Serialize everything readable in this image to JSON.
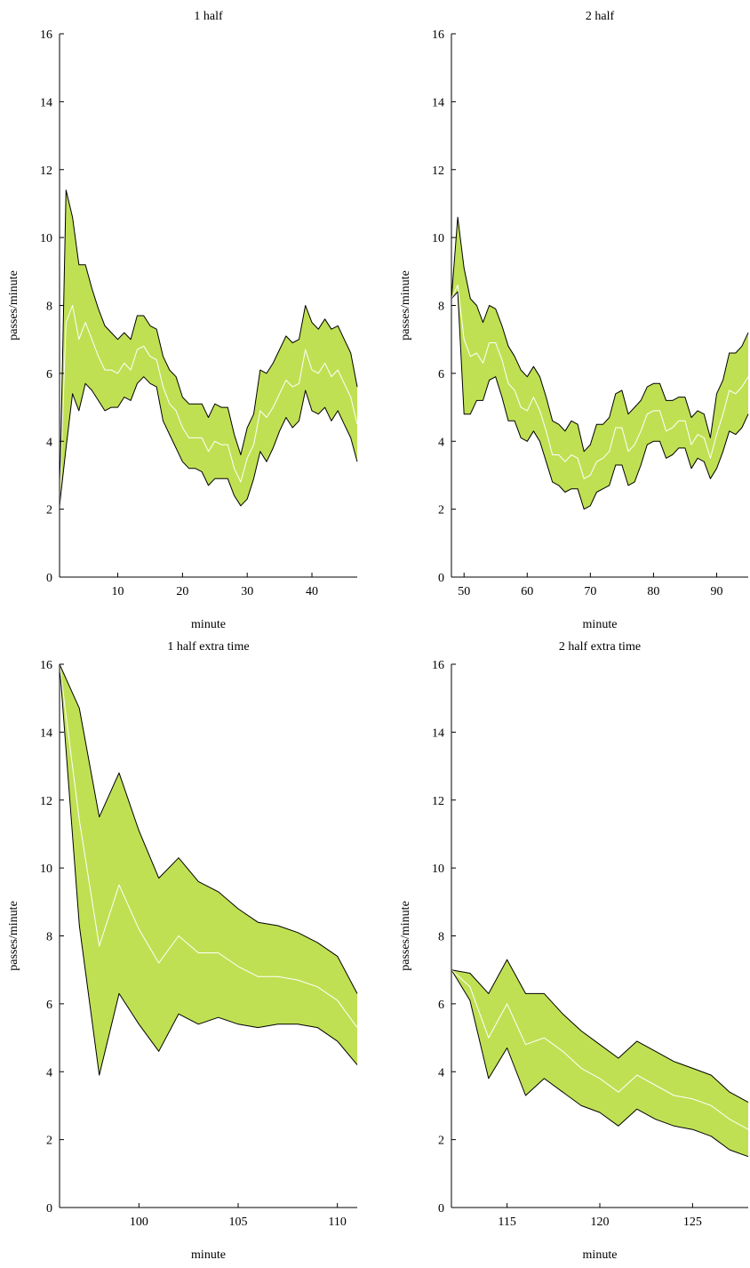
{
  "colors": {
    "band": "#c0e054",
    "mean": "#ffffff",
    "edge": "#000000"
  },
  "chart_data": [
    {
      "type": "area",
      "title": "1 half",
      "xlabel": "minute",
      "ylabel": "passes/minute",
      "xlim": [
        1,
        47
      ],
      "ylim": [
        0,
        16
      ],
      "xticks": [
        10,
        20,
        30,
        40
      ],
      "yticks": [
        0,
        2,
        4,
        6,
        8,
        10,
        12,
        14,
        16
      ],
      "x": [
        1,
        2,
        3,
        4,
        5,
        6,
        7,
        8,
        9,
        10,
        11,
        12,
        13,
        14,
        15,
        16,
        17,
        18,
        19,
        20,
        21,
        22,
        23,
        24,
        25,
        26,
        27,
        28,
        29,
        30,
        31,
        32,
        33,
        34,
        35,
        36,
        37,
        38,
        39,
        40,
        41,
        42,
        43,
        44,
        45,
        46,
        47
      ],
      "series": [
        {
          "role": "upper",
          "values": [
            2.1,
            11.4,
            10.6,
            9.2,
            9.2,
            8.5,
            7.9,
            7.4,
            7.2,
            7.0,
            7.2,
            7.0,
            7.7,
            7.7,
            7.4,
            7.3,
            6.5,
            6.1,
            5.9,
            5.3,
            5.1,
            5.1,
            5.1,
            4.7,
            5.1,
            5.0,
            5.0,
            4.2,
            3.6,
            4.4,
            4.8,
            6.1,
            6.0,
            6.3,
            6.7,
            7.1,
            6.9,
            7.0,
            8.0,
            7.5,
            7.3,
            7.6,
            7.3,
            7.4,
            7.0,
            6.6,
            5.6
          ]
        },
        {
          "role": "mean",
          "values": [
            2.1,
            7.5,
            8.0,
            7.0,
            7.5,
            7.0,
            6.5,
            6.1,
            6.1,
            6.0,
            6.3,
            6.1,
            6.7,
            6.8,
            6.5,
            6.4,
            5.6,
            5.1,
            4.9,
            4.4,
            4.1,
            4.1,
            4.1,
            3.7,
            4.0,
            3.9,
            3.9,
            3.2,
            2.8,
            3.5,
            3.9,
            4.9,
            4.7,
            5.0,
            5.4,
            5.8,
            5.6,
            5.7,
            6.7,
            6.1,
            6.0,
            6.3,
            5.9,
            6.1,
            5.7,
            5.3,
            4.5
          ]
        },
        {
          "role": "lower",
          "values": [
            2.1,
            3.8,
            5.4,
            4.9,
            5.7,
            5.5,
            5.2,
            4.9,
            5.0,
            5.0,
            5.3,
            5.2,
            5.7,
            5.9,
            5.7,
            5.6,
            4.6,
            4.2,
            3.8,
            3.4,
            3.2,
            3.2,
            3.1,
            2.7,
            2.9,
            2.9,
            2.9,
            2.4,
            2.1,
            2.3,
            2.9,
            3.7,
            3.4,
            3.8,
            4.3,
            4.7,
            4.4,
            4.6,
            5.5,
            4.9,
            4.8,
            5.0,
            4.6,
            4.9,
            4.5,
            4.1,
            3.4
          ]
        }
      ]
    },
    {
      "type": "area",
      "title": "2 half",
      "xlabel": "minute",
      "ylabel": "passes/minute",
      "xlim": [
        48,
        95
      ],
      "ylim": [
        0,
        16
      ],
      "xticks": [
        50,
        60,
        70,
        80,
        90
      ],
      "yticks": [
        0,
        2,
        4,
        6,
        8,
        10,
        12,
        14,
        16
      ],
      "x": [
        48,
        49,
        50,
        51,
        52,
        53,
        54,
        55,
        56,
        57,
        58,
        59,
        60,
        61,
        62,
        63,
        64,
        65,
        66,
        67,
        68,
        69,
        70,
        71,
        72,
        73,
        74,
        75,
        76,
        77,
        78,
        79,
        80,
        81,
        82,
        83,
        84,
        85,
        86,
        87,
        88,
        89,
        90,
        91,
        92,
        93,
        94,
        95
      ],
      "series": [
        {
          "role": "upper",
          "values": [
            8.2,
            10.6,
            9.1,
            8.2,
            8.0,
            7.5,
            8.0,
            7.9,
            7.4,
            6.8,
            6.5,
            6.1,
            5.9,
            6.2,
            5.9,
            5.3,
            4.6,
            4.5,
            4.3,
            4.6,
            4.5,
            3.7,
            3.9,
            4.5,
            4.5,
            4.7,
            5.4,
            5.5,
            4.8,
            5.0,
            5.2,
            5.6,
            5.7,
            5.7,
            5.2,
            5.2,
            5.3,
            5.3,
            4.7,
            4.9,
            4.8,
            4.1,
            5.4,
            5.8,
            6.6,
            6.6,
            6.8,
            7.2
          ]
        },
        {
          "role": "mean",
          "values": [
            8.2,
            8.6,
            7.0,
            6.5,
            6.6,
            6.3,
            6.9,
            6.9,
            6.4,
            5.7,
            5.5,
            5.0,
            4.9,
            5.3,
            4.9,
            4.3,
            3.6,
            3.6,
            3.4,
            3.6,
            3.5,
            2.9,
            3.0,
            3.4,
            3.5,
            3.7,
            4.4,
            4.4,
            3.7,
            3.9,
            4.3,
            4.8,
            4.9,
            4.9,
            4.3,
            4.4,
            4.6,
            4.6,
            3.9,
            4.2,
            4.1,
            3.5,
            4.2,
            4.8,
            5.5,
            5.4,
            5.6,
            5.9
          ]
        },
        {
          "role": "lower",
          "values": [
            8.2,
            8.4,
            4.8,
            4.8,
            5.2,
            5.2,
            5.8,
            5.9,
            5.3,
            4.6,
            4.6,
            4.1,
            4.0,
            4.3,
            4.0,
            3.4,
            2.8,
            2.7,
            2.5,
            2.6,
            2.6,
            2.0,
            2.1,
            2.5,
            2.6,
            2.7,
            3.3,
            3.3,
            2.7,
            2.8,
            3.3,
            3.9,
            4.0,
            4.0,
            3.5,
            3.6,
            3.8,
            3.8,
            3.2,
            3.5,
            3.4,
            2.9,
            3.2,
            3.7,
            4.3,
            4.2,
            4.4,
            4.8
          ]
        }
      ]
    },
    {
      "type": "area",
      "title": "1 half extra time",
      "xlabel": "minute",
      "ylabel": "passes/minute",
      "xlim": [
        96,
        111
      ],
      "ylim": [
        0,
        16
      ],
      "xticks": [
        100,
        105,
        110
      ],
      "yticks": [
        0,
        2,
        4,
        6,
        8,
        10,
        12,
        14,
        16
      ],
      "x": [
        96,
        97,
        98,
        99,
        100,
        101,
        102,
        103,
        104,
        105,
        106,
        107,
        108,
        109,
        110,
        111
      ],
      "series": [
        {
          "role": "upper",
          "values": [
            16.0,
            14.7,
            11.5,
            12.8,
            11.1,
            9.7,
            10.3,
            9.6,
            9.3,
            8.8,
            8.4,
            8.3,
            8.1,
            7.8,
            7.4,
            6.3
          ]
        },
        {
          "role": "mean",
          "values": [
            16.0,
            11.4,
            7.7,
            9.5,
            8.2,
            7.2,
            8.0,
            7.5,
            7.5,
            7.1,
            6.8,
            6.8,
            6.7,
            6.5,
            6.1,
            5.3
          ]
        },
        {
          "role": "lower",
          "values": [
            16.0,
            8.3,
            3.9,
            6.3,
            5.4,
            4.6,
            5.7,
            5.4,
            5.6,
            5.4,
            5.3,
            5.4,
            5.4,
            5.3,
            4.9,
            4.2
          ]
        }
      ]
    },
    {
      "type": "area",
      "title": "2 half extra time",
      "xlabel": "minute",
      "ylabel": "passes/minute",
      "xlim": [
        112,
        128
      ],
      "ylim": [
        0,
        16
      ],
      "xticks": [
        115,
        120,
        125
      ],
      "yticks": [
        0,
        2,
        4,
        6,
        8,
        10,
        12,
        14,
        16
      ],
      "x": [
        112,
        113,
        114,
        115,
        116,
        117,
        118,
        119,
        120,
        121,
        122,
        123,
        124,
        125,
        126,
        127,
        128
      ],
      "series": [
        {
          "role": "upper",
          "values": [
            7.0,
            6.9,
            6.3,
            7.3,
            6.3,
            6.3,
            5.7,
            5.2,
            4.8,
            4.4,
            4.9,
            4.6,
            4.3,
            4.1,
            3.9,
            3.4,
            3.1
          ]
        },
        {
          "role": "mean",
          "values": [
            7.0,
            6.5,
            5.0,
            6.0,
            4.8,
            5.0,
            4.6,
            4.1,
            3.8,
            3.4,
            3.9,
            3.6,
            3.3,
            3.2,
            3.0,
            2.6,
            2.3
          ]
        },
        {
          "role": "lower",
          "values": [
            7.0,
            6.1,
            3.8,
            4.7,
            3.3,
            3.8,
            3.4,
            3.0,
            2.8,
            2.4,
            2.9,
            2.6,
            2.4,
            2.3,
            2.1,
            1.7,
            1.5
          ]
        }
      ]
    }
  ]
}
